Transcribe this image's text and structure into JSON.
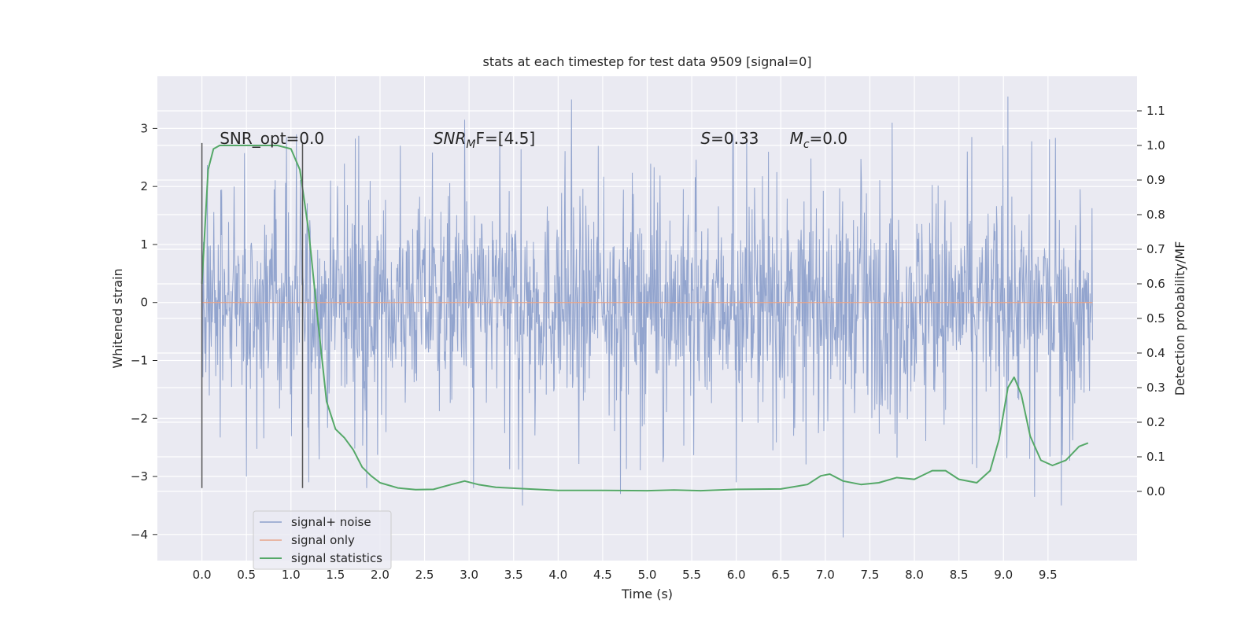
{
  "chart_data": {
    "type": "line",
    "title": "stats at each timestep for test data 9509 [signal=0]",
    "xlabel": "Time (s)",
    "ylabel": "Whitened strain",
    "ylabel_right": "Detection probability/MF",
    "xlim": [
      -0.5,
      10.5
    ],
    "ylim": [
      -4.45,
      3.9
    ],
    "ylim_right": [
      -0.2,
      1.2
    ],
    "x_ticks": [
      "0.0",
      "0.5",
      "1.0",
      "1.5",
      "2.0",
      "2.5",
      "3.0",
      "3.5",
      "4.0",
      "4.5",
      "5.0",
      "5.5",
      "6.0",
      "6.5",
      "7.0",
      "7.5",
      "8.0",
      "8.5",
      "9.0",
      "9.5"
    ],
    "y_ticks": [
      "3",
      "2",
      "1",
      "0",
      "−1",
      "−2",
      "−3",
      "−4"
    ],
    "y_ticks_right": [
      "1.1",
      "1.0",
      "0.9",
      "0.8",
      "0.7",
      "0.6",
      "0.5",
      "0.4",
      "0.3",
      "0.2",
      "0.1",
      "0.0"
    ],
    "grid": true,
    "legend_position": "lower-left",
    "annotations": {
      "snr_opt": "SNR_opt=0.0",
      "snr_mf_main": "SNR",
      "snr_mf_sub": "M",
      "snr_mf_rest": "F=[4.5]",
      "s_main": "S",
      "s_rest": "=0.33",
      "mc_main": "M",
      "mc_sub": "c",
      "mc_rest": "=0.0"
    },
    "vlines": [
      0.0,
      1.13
    ],
    "vline_range": [
      -3.2,
      2.75
    ],
    "series": [
      {
        "name": "signal+ noise",
        "color": "#8da0cb",
        "kind": "noise",
        "x_range": [
          0.0,
          10.0
        ],
        "typical_range": [
          -1.55,
          1.55
        ],
        "envelope_range": [
          -3.5,
          3.55
        ],
        "peaks": [
          {
            "x": 0.0,
            "y": 2.0
          },
          {
            "x": 0.5,
            "y": -3.0
          },
          {
            "x": 0.95,
            "y": 2.85
          },
          {
            "x": 1.2,
            "y": -3.1
          },
          {
            "x": 1.85,
            "y": -3.2
          },
          {
            "x": 2.95,
            "y": 3.15
          },
          {
            "x": 3.05,
            "y": -3.2
          },
          {
            "x": 3.6,
            "y": -3.5
          },
          {
            "x": 4.15,
            "y": 3.5
          },
          {
            "x": 4.45,
            "y": 2.7
          },
          {
            "x": 4.7,
            "y": -3.3
          },
          {
            "x": 6.0,
            "y": -3.1
          },
          {
            "x": 7.2,
            "y": -4.05
          },
          {
            "x": 7.75,
            "y": 3.1
          },
          {
            "x": 9.05,
            "y": 3.55
          },
          {
            "x": 9.35,
            "y": -3.35
          },
          {
            "x": 9.65,
            "y": -3.5
          }
        ]
      },
      {
        "name": "signal only",
        "color": "#e8a589",
        "x": [
          0.0,
          10.0
        ],
        "y": [
          0.0,
          0.0
        ]
      },
      {
        "name": "signal statistics",
        "color": "#55a868",
        "axis": "right",
        "x": [
          0.0,
          0.07,
          0.13,
          0.2,
          0.35,
          0.6,
          0.85,
          1.0,
          1.1,
          1.2,
          1.3,
          1.4,
          1.5,
          1.6,
          1.7,
          1.8,
          1.9,
          2.0,
          2.2,
          2.4,
          2.6,
          2.8,
          2.95,
          3.1,
          3.3,
          3.6,
          4.0,
          4.5,
          5.0,
          5.3,
          5.6,
          6.0,
          6.5,
          6.8,
          6.95,
          7.05,
          7.2,
          7.4,
          7.6,
          7.8,
          8.0,
          8.2,
          8.35,
          8.5,
          8.7,
          8.85,
          8.95,
          9.05,
          9.12,
          9.2,
          9.3,
          9.42,
          9.55,
          9.7,
          9.85,
          9.95
        ],
        "y": [
          0.6,
          0.93,
          0.99,
          1.0,
          1.0,
          1.0,
          1.0,
          0.99,
          0.93,
          0.75,
          0.5,
          0.26,
          0.18,
          0.155,
          0.12,
          0.07,
          0.045,
          0.025,
          0.01,
          0.005,
          0.006,
          0.02,
          0.03,
          0.02,
          0.012,
          0.008,
          0.003,
          0.003,
          0.002,
          0.004,
          0.002,
          0.006,
          0.007,
          0.02,
          0.045,
          0.05,
          0.03,
          0.02,
          0.025,
          0.04,
          0.035,
          0.06,
          0.06,
          0.035,
          0.025,
          0.06,
          0.15,
          0.3,
          0.33,
          0.28,
          0.16,
          0.09,
          0.075,
          0.09,
          0.13,
          0.14
        ]
      }
    ]
  }
}
